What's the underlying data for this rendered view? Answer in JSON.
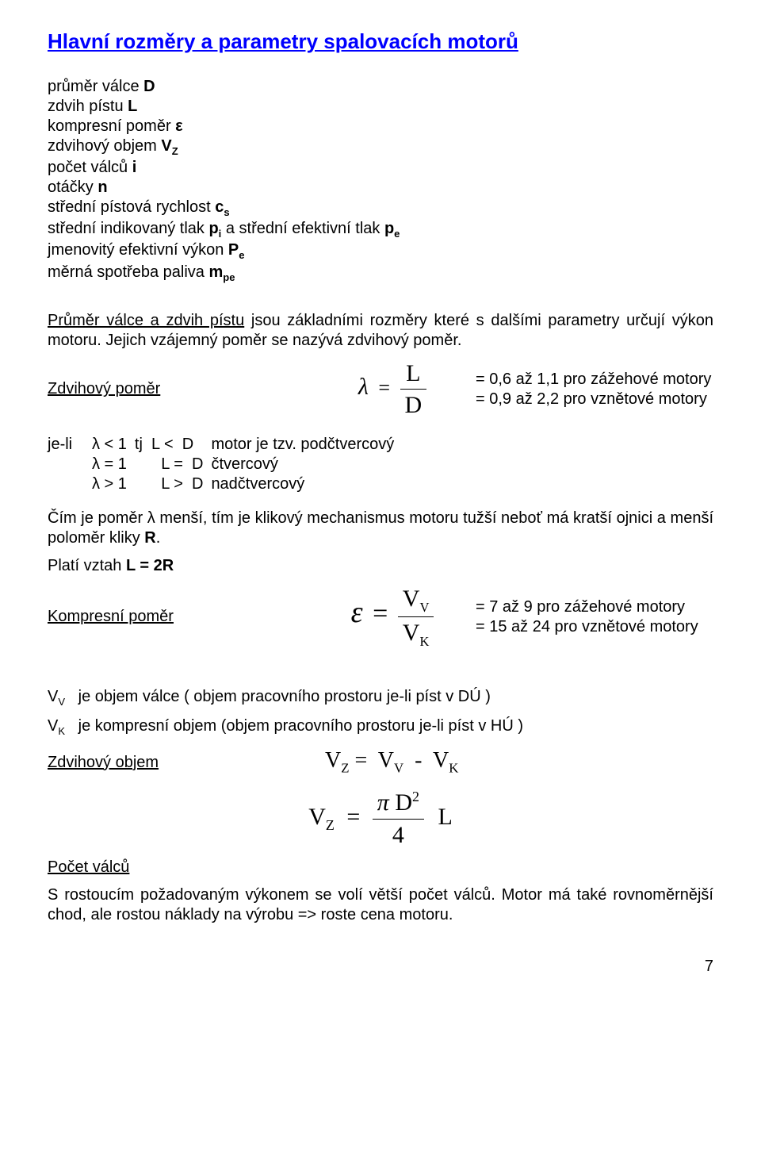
{
  "title": "Hlavní rozměry a parametry spalovacích motorů",
  "params": [
    {
      "label": "průměr válce",
      "sym": "D"
    },
    {
      "label": "zdvih pístu",
      "sym": "L"
    },
    {
      "label": "kompresní poměr",
      "sym": "ε"
    },
    {
      "label": "zdvihový objem",
      "sym": "V",
      "sub": "Z"
    },
    {
      "label": "počet válců",
      "sym": "i"
    },
    {
      "label": "otáčky",
      "sym": "n"
    },
    {
      "label": "střední pístová rychlost",
      "sym": "c",
      "sub": "s"
    },
    {
      "label": "střední indikovaný tlak",
      "sym": "p",
      "sub": "i",
      "tail": " a střední efektivní tlak ",
      "sym2": "p",
      "sub2": "e"
    },
    {
      "label": "jmenovitý efektivní výkon",
      "sym": "P",
      "sub": "e"
    },
    {
      "label": "měrná spotřeba paliva",
      "sym": "m",
      "sub": "pe"
    }
  ],
  "p1_a": "Průměr válce a zdvih pístu",
  "p1_b": " jsou základními rozměry které s dalšími parametry určují výkon motoru. Jejich vzájemný poměr se nazývá zdvihový poměr.",
  "zdvih_label": "Zdvihový poměr",
  "lambda_sym": "λ",
  "eq": "=",
  "L": "L",
  "D": "D",
  "range_lambda_1": "= 0,6 až 1,1 pro zážehové motory",
  "range_lambda_2": "= 0,9 až 2,2 pro vznětové motory",
  "cond": {
    "c0a": "je-li",
    "r0": {
      "a": "λ  <  1",
      "b": "tj  L <  D",
      "c": "motor je tzv. podčtvercový"
    },
    "r1": {
      "a": "λ  =  1",
      "b": "      L =  D",
      "c": "čtvercový"
    },
    "r2": {
      "a": "λ  >  1",
      "b": "      L >  D",
      "c": "nadčtvercový"
    }
  },
  "p2": "Čím je poměr λ menší, tím je klikový mechanismus motoru tužší neboť má kratší ojnici  a menší poloměr kliky ",
  "p2_R": "R",
  "p2_dot": ".",
  "p3_a": "Platí vztah ",
  "p3_b": "L  =   2R",
  "komp_label": "Kompresní poměr",
  "eps_sym": "ε",
  "VV": "V",
  "VVsub": "V",
  "VK": "V",
  "VKsub": "K",
  "range_eps_1": "=  7  až  9 pro zážehové motory",
  "range_eps_2": "= 15 až 24 pro vznětové motory",
  "vv_line": "V",
  "vv_sub": "V",
  "vv_txt": "   je objem válce ( objem pracovního prostoru je-li píst v DÚ )",
  "vk_line": "V",
  "vk_sub": "K",
  "vk_txt": "   je kompresní objem (objem pracovního prostoru je-li píst v HÚ )",
  "zobjem_label": "Zdvihový objem",
  "vz_eq_pre": "V",
  "vz_eq_sub": "Z",
  "vz_eq_mid": " =  V",
  "vz_eq_mid_sub": "V",
  "vz_eq_mid2": "  -  V",
  "vz_eq_mid2_sub": "K",
  "pi": "π",
  "D2": "D",
  "sup2": "2",
  "four": "4",
  "L_end": "L",
  "pocet_label": "Počet válců",
  "p_last": "S rostoucím požadovaným výkonem se volí větší počet válců. Motor má také rovnoměrnější chod,  ale rostou náklady na výrobu => roste cena motoru.",
  "page_no": "7"
}
